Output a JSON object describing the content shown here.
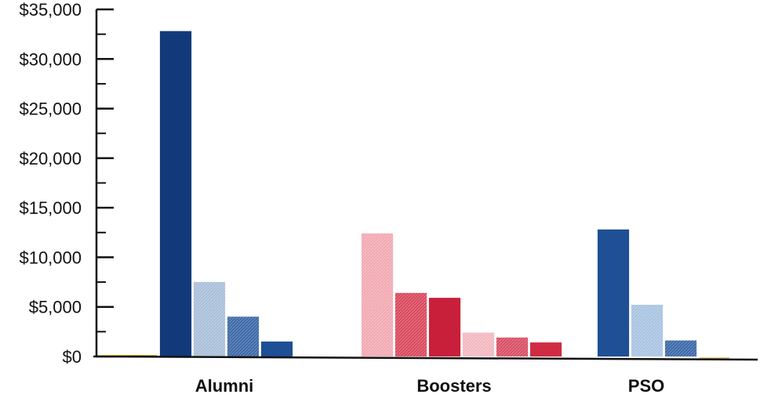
{
  "chart_data": {
    "type": "bar",
    "title": "",
    "xlabel": "",
    "ylabel": "",
    "ylim": [
      0,
      35000
    ],
    "yticks": [
      0,
      5000,
      10000,
      15000,
      20000,
      25000,
      30000,
      35000
    ],
    "ytick_labels": [
      "$0",
      "$5,000",
      "$10,000",
      "$15,000",
      "$20,000",
      "$25,000",
      "$30,000",
      "$35,000"
    ],
    "grid": false,
    "legend": "none",
    "categories": [
      "Alumni",
      "Boosters",
      "PSO"
    ],
    "groups": [
      {
        "category": "Alumni",
        "bars": [
          {
            "value": 32800,
            "color": "#123a7a",
            "pattern": "solid"
          },
          {
            "value": 7500,
            "color": "#a9bfd9",
            "pattern": "hatch"
          },
          {
            "value": 4000,
            "color": "#3c68a8",
            "pattern": "hatch"
          },
          {
            "value": 1500,
            "color": "#1f4f95",
            "pattern": "solid"
          }
        ]
      },
      {
        "category": "Boosters",
        "bars": [
          {
            "value": 12400,
            "color": "#f2a9b2",
            "pattern": "hatch"
          },
          {
            "value": 6400,
            "color": "#d9485c",
            "pattern": "hatch"
          },
          {
            "value": 5900,
            "color": "#c8203a",
            "pattern": "solid"
          },
          {
            "value": 2400,
            "color": "#f2b8c0",
            "pattern": "hatch"
          },
          {
            "value": 1900,
            "color": "#d84e64",
            "pattern": "hatch"
          },
          {
            "value": 1400,
            "color": "#cf2c44",
            "pattern": "solid"
          }
        ]
      },
      {
        "category": "PSO",
        "bars": [
          {
            "value": 12800,
            "color": "#1f4f95",
            "pattern": "solid"
          },
          {
            "value": 5200,
            "color": "#a9c3e2",
            "pattern": "hatch"
          },
          {
            "value": 1600,
            "color": "#3c68a8",
            "pattern": "hatch"
          }
        ]
      }
    ],
    "colors": {
      "axis": "#111111",
      "baseline_accent": "#c9a227"
    }
  }
}
